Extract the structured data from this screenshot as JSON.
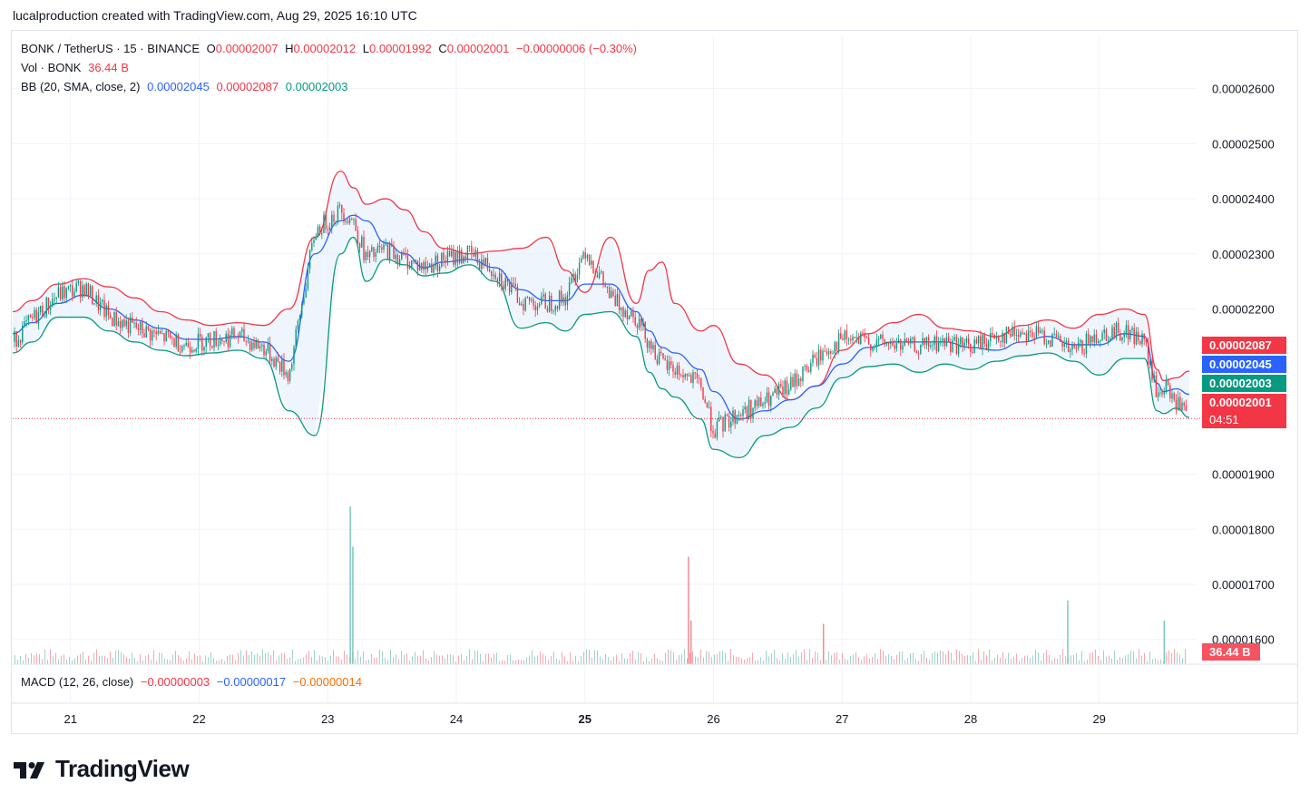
{
  "attribution": "lucalproduction created with TradingView.com, Aug 29, 2025 16:10 UTC",
  "legend": {
    "symbol": "BONK / TetherUS · 15 · BINANCE",
    "o_label": "O",
    "o": "0.00002007",
    "h_label": "H",
    "h": "0.00002012",
    "l_label": "L",
    "l": "0.00001992",
    "c_label": "C",
    "c": "0.00002001",
    "change": "−0.00000006 (−0.30%)",
    "vol_label": "Vol · BONK",
    "vol": "36.44 B",
    "bb_label": "BB (20, SMA, close, 2)",
    "bb_basis": "0.00002045",
    "bb_upper": "0.00002087",
    "bb_lower": "0.00002003"
  },
  "macd": {
    "label": "MACD (12, 26, close)",
    "v1": "−0.00000003",
    "v2": "−0.00000017",
    "v3": "−0.00000014"
  },
  "price_tags": {
    "upper": "0.00002087",
    "basis": "0.00002045",
    "lower": "0.00002003",
    "last": "0.00002001",
    "countdown": "04:51",
    "volume": "36.44 B"
  },
  "colors": {
    "up": "#089981",
    "down": "#f23645",
    "basis": "#2962ff",
    "upper_band": "#f23645",
    "lower_band": "#089981",
    "band_fill": "#e8f1fb",
    "macd_label": "#131722"
  },
  "logo_text": "TradingView",
  "chart_data": {
    "type": "line",
    "title": "BONK / TetherUS · 15 · BINANCE",
    "y_ticks": [
      "0.00002600",
      "0.00002500",
      "0.00002400",
      "0.00002300",
      "0.00002200",
      "0.00001900",
      "0.00001800",
      "0.00001700",
      "0.00001600"
    ],
    "y_tick_values": [
      2.6e-05,
      2.5e-05,
      2.4e-05,
      2.3e-05,
      2.2e-05,
      1.9e-05,
      1.8e-05,
      1.7e-05,
      1.6e-05
    ],
    "ylim": [
      1.555e-05,
      2.695e-05
    ],
    "x_ticks": [
      "21",
      "22",
      "23",
      "24",
      "25",
      "26",
      "27",
      "28",
      "29"
    ],
    "x_tick_values": [
      0,
      1,
      2,
      3,
      4,
      5,
      6,
      7,
      8
    ],
    "x_bold": "25",
    "xlim": [
      -0.45,
      8.75
    ],
    "last_price": 2.001e-05,
    "series": [
      {
        "name": "Upper",
        "x": [
          -0.45,
          -0.3,
          -0.1,
          0.1,
          0.3,
          0.5,
          0.7,
          0.9,
          1.1,
          1.3,
          1.5,
          1.7,
          1.9,
          2.1,
          2.2,
          2.3,
          2.45,
          2.6,
          2.75,
          2.9,
          3.1,
          3.3,
          3.5,
          3.7,
          3.85,
          4.0,
          4.2,
          4.4,
          4.5,
          4.6,
          4.7,
          4.9,
          5.0,
          5.2,
          5.4,
          5.6,
          5.8,
          6.0,
          6.2,
          6.4,
          6.6,
          6.8,
          7.0,
          7.2,
          7.4,
          7.6,
          7.8,
          8.0,
          8.2,
          8.35,
          8.45,
          8.5,
          8.6,
          8.7
        ],
        "y": [
          2.195e-05,
          2.215e-05,
          2.245e-05,
          2.255e-05,
          2.24e-05,
          2.22e-05,
          2.195e-05,
          2.18e-05,
          2.17e-05,
          2.175e-05,
          2.17e-05,
          2.2e-05,
          2.33e-05,
          2.45e-05,
          2.42e-05,
          2.39e-05,
          2.4e-05,
          2.38e-05,
          2.34e-05,
          2.31e-05,
          2.3e-05,
          2.305e-05,
          2.31e-05,
          2.33e-05,
          2.27e-05,
          2.23e-05,
          2.33e-05,
          2.21e-05,
          2.27e-05,
          2.285e-05,
          2.21e-05,
          2.16e-05,
          2.17e-05,
          2.1e-05,
          2.08e-05,
          2.035e-05,
          2.06e-05,
          2.125e-05,
          2.155e-05,
          2.175e-05,
          2.19e-05,
          2.165e-05,
          2.16e-05,
          2.15e-05,
          2.17e-05,
          2.18e-05,
          2.165e-05,
          2.19e-05,
          2.2e-05,
          2.19e-05,
          2.09e-05,
          2.07e-05,
          2.075e-05,
          2.087e-05
        ]
      },
      {
        "name": "Basis",
        "x": [
          -0.45,
          -0.3,
          -0.1,
          0.1,
          0.3,
          0.5,
          0.7,
          0.9,
          1.1,
          1.3,
          1.5,
          1.7,
          1.9,
          2.1,
          2.2,
          2.3,
          2.45,
          2.6,
          2.75,
          2.9,
          3.1,
          3.3,
          3.5,
          3.7,
          3.85,
          4.0,
          4.2,
          4.4,
          4.5,
          4.6,
          4.7,
          4.9,
          5.0,
          5.2,
          5.4,
          5.6,
          5.8,
          6.0,
          6.2,
          6.4,
          6.6,
          6.8,
          7.0,
          7.2,
          7.4,
          7.6,
          7.8,
          8.0,
          8.2,
          8.35,
          8.45,
          8.5,
          8.6,
          8.7
        ],
        "y": [
          2.155e-05,
          2.175e-05,
          2.21e-05,
          2.225e-05,
          2.2e-05,
          2.18e-05,
          2.165e-05,
          2.145e-05,
          2.145e-05,
          2.15e-05,
          2.14e-05,
          2.105e-05,
          2.3e-05,
          2.36e-05,
          2.37e-05,
          2.36e-05,
          2.32e-05,
          2.3e-05,
          2.275e-05,
          2.285e-05,
          2.29e-05,
          2.275e-05,
          2.235e-05,
          2.215e-05,
          2.215e-05,
          2.245e-05,
          2.245e-05,
          2.195e-05,
          2.16e-05,
          2.13e-05,
          2.12e-05,
          2.09e-05,
          2.05e-05,
          2e-05,
          2.015e-05,
          2.035e-05,
          2.06e-05,
          2.1e-05,
          2.13e-05,
          2.14e-05,
          2.14e-05,
          2.14e-05,
          2.13e-05,
          2.125e-05,
          2.14e-05,
          2.15e-05,
          2.135e-05,
          2.135e-05,
          2.155e-05,
          2.15e-05,
          2.065e-05,
          2.05e-05,
          2.055e-05,
          2.045e-05
        ]
      },
      {
        "name": "Lower",
        "x": [
          -0.45,
          -0.3,
          -0.1,
          0.1,
          0.3,
          0.5,
          0.7,
          0.9,
          1.1,
          1.3,
          1.5,
          1.7,
          1.9,
          2.1,
          2.2,
          2.3,
          2.45,
          2.6,
          2.75,
          2.9,
          3.1,
          3.3,
          3.5,
          3.7,
          3.85,
          4.0,
          4.2,
          4.4,
          4.5,
          4.6,
          4.7,
          4.9,
          5.0,
          5.2,
          5.4,
          5.6,
          5.8,
          6.0,
          6.2,
          6.4,
          6.6,
          6.8,
          7.0,
          7.2,
          7.4,
          7.6,
          7.8,
          8.0,
          8.2,
          8.35,
          8.45,
          8.5,
          8.6,
          8.7
        ],
        "y": [
          2.12e-05,
          2.14e-05,
          2.185e-05,
          2.185e-05,
          2.16e-05,
          2.14e-05,
          2.125e-05,
          2.115e-05,
          2.12e-05,
          2.125e-05,
          2.11e-05,
          2.015e-05,
          1.97e-05,
          2.3e-05,
          2.33e-05,
          2.25e-05,
          2.29e-05,
          2.28e-05,
          2.26e-05,
          2.265e-05,
          2.28e-05,
          2.25e-05,
          2.165e-05,
          2.175e-05,
          2.16e-05,
          2.19e-05,
          2.195e-05,
          2.15e-05,
          2.085e-05,
          2.055e-05,
          2.04e-05,
          2e-05,
          1.945e-05,
          1.93e-05,
          1.97e-05,
          1.985e-05,
          2.02e-05,
          2.075e-05,
          2.095e-05,
          2.1e-05,
          2.085e-05,
          2.1e-05,
          2.09e-05,
          2.105e-05,
          2.115e-05,
          2.12e-05,
          2.105e-05,
          2.08e-05,
          2.11e-05,
          2.11e-05,
          2.015e-05,
          2.01e-05,
          2.02e-05,
          2.003e-05
        ]
      },
      {
        "name": "Close",
        "x": [
          -0.45,
          -0.3,
          -0.1,
          0.1,
          0.3,
          0.5,
          0.7,
          0.9,
          1.1,
          1.3,
          1.5,
          1.7,
          1.9,
          2.1,
          2.2,
          2.3,
          2.45,
          2.6,
          2.75,
          2.9,
          3.1,
          3.3,
          3.5,
          3.7,
          3.85,
          4.0,
          4.2,
          4.4,
          4.5,
          4.6,
          4.7,
          4.9,
          5.0,
          5.2,
          5.4,
          5.6,
          5.8,
          6.0,
          6.2,
          6.4,
          6.6,
          6.8,
          7.0,
          7.2,
          7.4,
          7.6,
          7.8,
          8.0,
          8.2,
          8.35,
          8.45,
          8.5,
          8.6,
          8.7
        ],
        "y": [
          2.14e-05,
          2.18e-05,
          2.225e-05,
          2.24e-05,
          2.185e-05,
          2.165e-05,
          2.15e-05,
          2.135e-05,
          2.145e-05,
          2.15e-05,
          2.13e-05,
          2.08e-05,
          2.34e-05,
          2.38e-05,
          2.36e-05,
          2.29e-05,
          2.31e-05,
          2.29e-05,
          2.275e-05,
          2.29e-05,
          2.3e-05,
          2.27e-05,
          2.215e-05,
          2.21e-05,
          2.22e-05,
          2.31e-05,
          2.22e-05,
          2.185e-05,
          2.14e-05,
          2.1e-05,
          2.09e-05,
          2.06e-05,
          1.98e-05,
          2.01e-05,
          2.03e-05,
          2.06e-05,
          2.11e-05,
          2.145e-05,
          2.14e-05,
          2.135e-05,
          2.13e-05,
          2.14e-05,
          2.13e-05,
          2.15e-05,
          2.16e-05,
          2.15e-05,
          2.12e-05,
          2.155e-05,
          2.16e-05,
          2.14e-05,
          2.04e-05,
          2.06e-05,
          2.03e-05,
          2.001e-05
        ]
      }
    ],
    "volume_bars": [
      {
        "x": 2.17,
        "value": 0.47,
        "up": true
      },
      {
        "x": 2.19,
        "value": 0.35,
        "up": true
      },
      {
        "x": 4.8,
        "value": 0.32,
        "up": false
      },
      {
        "x": 4.82,
        "value": 0.13,
        "up": false
      },
      {
        "x": 5.85,
        "value": 0.12,
        "up": false
      },
      {
        "x": 7.75,
        "value": 0.19,
        "up": true
      },
      {
        "x": 8.5,
        "value": 0.13,
        "up": true
      }
    ],
    "grid": true
  }
}
